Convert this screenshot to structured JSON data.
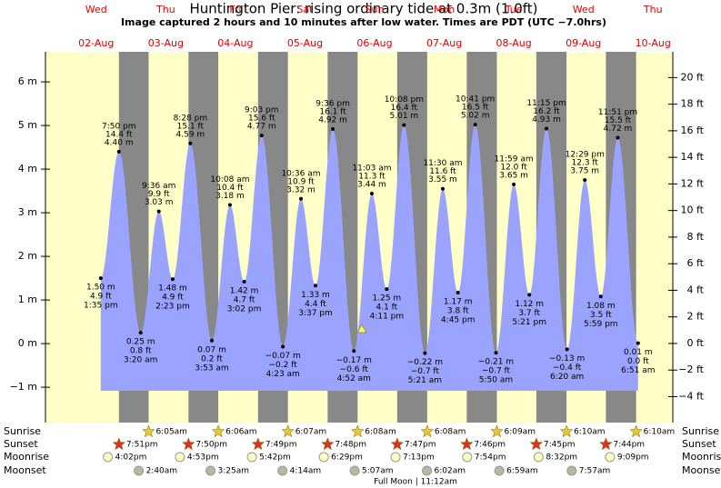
{
  "chart_data": {
    "type": "tide",
    "title": "Huntington Pier: rising  ordinary tide at 0.3m (1.0ft)",
    "subtitle": "Image captured 2 hours and 10 minutes after low water. Times are PDT (UTC −7.0hrs)",
    "ylim": [
      -1.81,
      6.69
    ],
    "yticks": [
      {
        "value": -1,
        "label": "−1 m"
      },
      {
        "value": 0,
        "label": "0 m"
      },
      {
        "value": 1,
        "label": "1 m"
      },
      {
        "value": 2,
        "label": "2 m"
      },
      {
        "value": 3,
        "label": "3 m"
      },
      {
        "value": 4,
        "label": "4 m"
      },
      {
        "value": 5,
        "label": "5 m"
      },
      {
        "value": 6,
        "label": "6 m"
      }
    ],
    "y2lim": [
      -5.95,
      21.94
    ],
    "y2ticks": [
      {
        "value": -4,
        "label": "−4 ft"
      },
      {
        "value": -2,
        "label": "−2 ft"
      },
      {
        "value": 0,
        "label": "0 ft"
      },
      {
        "value": 2,
        "label": "2 ft"
      },
      {
        "value": 4,
        "label": "4 ft"
      },
      {
        "value": 6,
        "label": "6 ft"
      },
      {
        "value": 8,
        "label": "8 ft"
      },
      {
        "value": 10,
        "label": "10 ft"
      },
      {
        "value": 12,
        "label": "12 ft"
      },
      {
        "value": 14,
        "label": "14 ft"
      },
      {
        "value": 16,
        "label": "16 ft"
      },
      {
        "value": 18,
        "label": "18 ft"
      },
      {
        "value": 20,
        "label": "20 ft"
      }
    ],
    "row_labels": [
      "Sunrise",
      "Sunset",
      "Moonrise",
      "Moonset"
    ],
    "days": [
      {
        "weekday": "Wed",
        "date": "02-Aug",
        "tides": [
          {
            "time": "1:35 pm",
            "height": 1.5,
            "height_label": "1.50 m",
            "ft_label": "4.9 ft"
          },
          {
            "time": "7:50 pm",
            "height": 4.4,
            "height_label": "4.40 m",
            "ft_label": "14.4 ft"
          }
        ],
        "sunset": "7:51pm",
        "moonrise": "4:02pm"
      },
      {
        "weekday": "Thu",
        "date": "03-Aug",
        "tides": [
          {
            "time": "3:20 am",
            "height": 0.25,
            "height_label": "0.25 m",
            "ft_label": "0.8 ft"
          },
          {
            "time": "9:36 am",
            "height": 3.03,
            "height_label": "3.03 m",
            "ft_label": "9.9 ft"
          },
          {
            "time": "2:23 pm",
            "height": 1.48,
            "height_label": "1.48 m",
            "ft_label": "4.9 ft"
          },
          {
            "time": "8:28 pm",
            "height": 4.59,
            "height_label": "4.59 m",
            "ft_label": "15.1 ft"
          }
        ],
        "sunrise": "6:05am",
        "sunset": "7:50pm",
        "moonrise": "4:53pm",
        "moonset": "2:40am"
      },
      {
        "weekday": "Fri",
        "date": "04-Aug",
        "tides": [
          {
            "time": "3:53 am",
            "height": 0.07,
            "height_label": "0.07 m",
            "ft_label": "0.2 ft"
          },
          {
            "time": "10:08 am",
            "height": 3.18,
            "height_label": "3.18 m",
            "ft_label": "10.4 ft"
          },
          {
            "time": "3:02 pm",
            "height": 1.42,
            "height_label": "1.42 m",
            "ft_label": "4.7 ft"
          },
          {
            "time": "9:03 pm",
            "height": 4.77,
            "height_label": "4.77 m",
            "ft_label": "15.6 ft"
          }
        ],
        "sunrise": "6:06am",
        "sunset": "7:49pm",
        "moonrise": "5:42pm",
        "moonset": "3:25am"
      },
      {
        "weekday": "Sat",
        "date": "05-Aug",
        "tides": [
          {
            "time": "4:23 am",
            "height": -0.07,
            "height_label": "−0.07 m",
            "ft_label": "−0.2 ft"
          },
          {
            "time": "10:36 am",
            "height": 3.32,
            "height_label": "3.32 m",
            "ft_label": "10.9 ft"
          },
          {
            "time": "3:37 pm",
            "height": 1.33,
            "height_label": "1.33 m",
            "ft_label": "4.4 ft"
          },
          {
            "time": "9:36 pm",
            "height": 4.92,
            "height_label": "4.92 m",
            "ft_label": "16.1 ft"
          }
        ],
        "sunrise": "6:07am",
        "sunset": "7:48pm",
        "moonrise": "6:29pm",
        "moonset": "4:14am"
      },
      {
        "weekday": "Sun",
        "date": "06-Aug",
        "tides": [
          {
            "time": "4:52 am",
            "height": -0.17,
            "height_label": "−0.17 m",
            "ft_label": "−0.6 ft"
          },
          {
            "time": "11:03 am",
            "height": 3.44,
            "height_label": "3.44 m",
            "ft_label": "11.3 ft"
          },
          {
            "time": "4:11 pm",
            "height": 1.25,
            "height_label": "1.25 m",
            "ft_label": "4.1 ft"
          },
          {
            "time": "10:08 pm",
            "height": 5.01,
            "height_label": "5.01 m",
            "ft_label": "16.4 ft"
          }
        ],
        "sunrise": "6:08am",
        "sunset": "7:47pm",
        "moonrise": "7:13pm",
        "moonset": "5:07am",
        "moon_phase": "Full Moon | 11:12am"
      },
      {
        "weekday": "Mon",
        "date": "07-Aug",
        "tides": [
          {
            "time": "5:21 am",
            "height": -0.22,
            "height_label": "−0.22 m",
            "ft_label": "−0.7 ft"
          },
          {
            "time": "11:30 am",
            "height": 3.55,
            "height_label": "3.55 m",
            "ft_label": "11.6 ft"
          },
          {
            "time": "4:45 pm",
            "height": 1.17,
            "height_label": "1.17 m",
            "ft_label": "3.8 ft"
          },
          {
            "time": "10:41 pm",
            "height": 5.02,
            "height_label": "5.02 m",
            "ft_label": "16.5 ft"
          }
        ],
        "sunrise": "6:08am",
        "sunset": "7:46pm",
        "moonrise": "7:54pm",
        "moonset": "6:02am"
      },
      {
        "weekday": "Tue",
        "date": "08-Aug",
        "tides": [
          {
            "time": "5:50 am",
            "height": -0.21,
            "height_label": "−0.21 m",
            "ft_label": "−0.7 ft"
          },
          {
            "time": "11:59 am",
            "height": 3.65,
            "height_label": "3.65 m",
            "ft_label": "12.0 ft"
          },
          {
            "time": "5:21 pm",
            "height": 1.12,
            "height_label": "1.12 m",
            "ft_label": "3.7 ft"
          },
          {
            "time": "11:15 pm",
            "height": 4.93,
            "height_label": "4.93 m",
            "ft_label": "16.2 ft"
          }
        ],
        "sunrise": "6:09am",
        "sunset": "7:45pm",
        "moonrise": "8:32pm",
        "moonset": "6:59am"
      },
      {
        "weekday": "Wed",
        "date": "09-Aug",
        "tides": [
          {
            "time": "6:20 am",
            "height": -0.13,
            "height_label": "−0.13 m",
            "ft_label": "−0.4 ft"
          },
          {
            "time": "12:29 pm",
            "height": 3.75,
            "height_label": "3.75 m",
            "ft_label": "12.3 ft"
          },
          {
            "time": "5:59 pm",
            "height": 1.08,
            "height_label": "1.08 m",
            "ft_label": "3.5 ft"
          },
          {
            "time": "11:51 pm",
            "height": 4.72,
            "height_label": "4.72 m",
            "ft_label": "15.5 ft"
          }
        ],
        "sunrise": "6:10am",
        "sunset": "7:44pm",
        "moonrise": "9:09pm",
        "moonset": "7:57am"
      },
      {
        "weekday": "Thu",
        "date": "10-Aug",
        "tides": [
          {
            "time": "6:51 am",
            "height": 0.01,
            "height_label": "0.01 m",
            "ft_label": "0.0 ft"
          }
        ],
        "sunrise": "6:10am"
      }
    ]
  }
}
